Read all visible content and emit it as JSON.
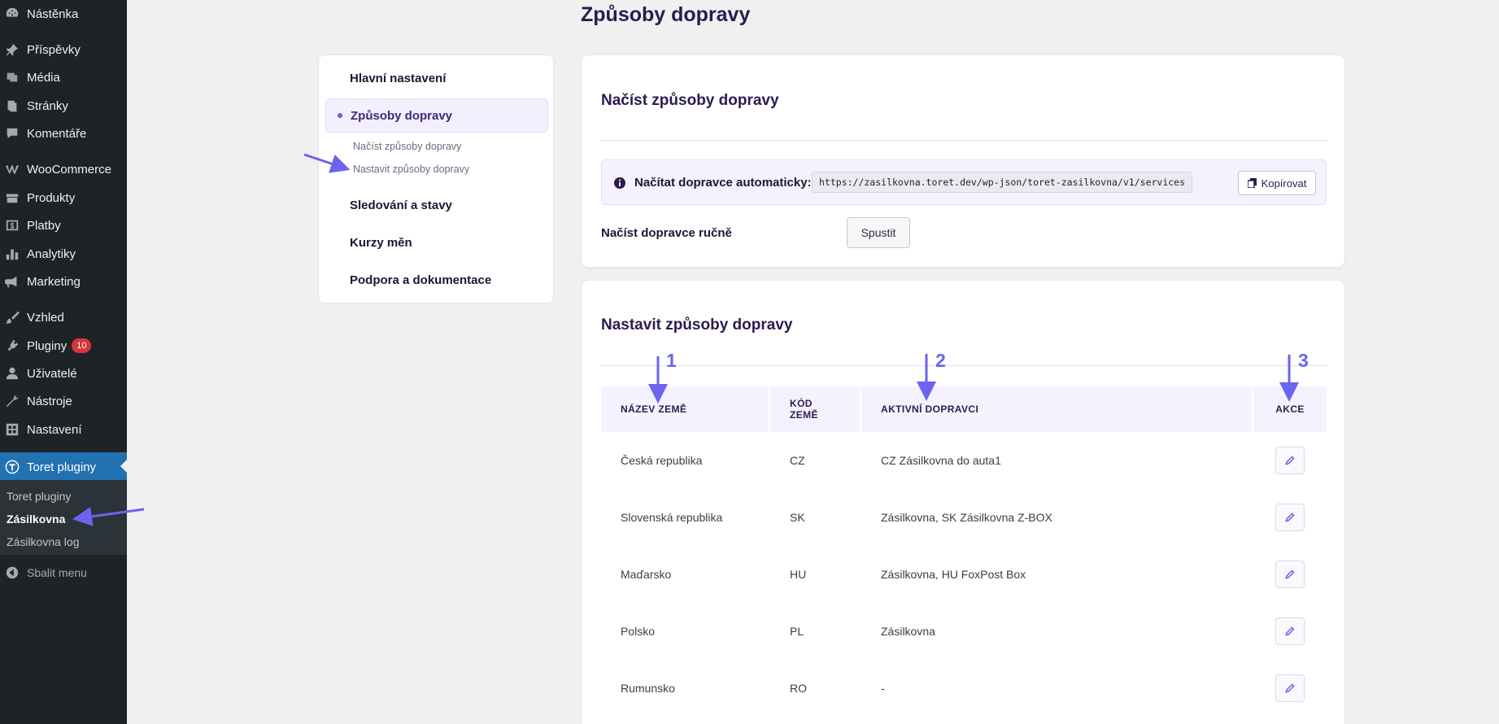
{
  "sidebar": {
    "items": [
      {
        "label": "Nástěnka",
        "icon": "dashboard-icon"
      },
      {
        "label": "Příspěvky",
        "icon": "pin-icon"
      },
      {
        "label": "Média",
        "icon": "media-icon"
      },
      {
        "label": "Stránky",
        "icon": "pages-icon"
      },
      {
        "label": "Komentáře",
        "icon": "comments-icon"
      },
      {
        "label": "WooCommerce",
        "icon": "woocommerce-icon"
      },
      {
        "label": "Produkty",
        "icon": "products-icon"
      },
      {
        "label": "Platby",
        "icon": "payments-icon"
      },
      {
        "label": "Analytiky",
        "icon": "analytics-icon"
      },
      {
        "label": "Marketing",
        "icon": "megaphone-icon"
      },
      {
        "label": "Vzhled",
        "icon": "brush-icon"
      },
      {
        "label": "Pluginy",
        "icon": "plugins-icon",
        "badge": "10"
      },
      {
        "label": "Uživatelé",
        "icon": "users-icon"
      },
      {
        "label": "Nástroje",
        "icon": "tools-icon"
      },
      {
        "label": "Nastavení",
        "icon": "settings-icon"
      },
      {
        "label": "Toret pluginy",
        "icon": "toret-icon"
      }
    ],
    "submenu": [
      "Toret pluginy",
      "Zásilkovna",
      "Zásilkovna log"
    ],
    "collapse_label": "Sbalit menu"
  },
  "page": {
    "title": "Způsoby dopravy"
  },
  "settings_nav": {
    "main": "Hlavní nastavení",
    "active": "Způsoby dopravy",
    "sub": [
      "Načíst způsoby dopravy",
      "Nastavit způsoby dopravy"
    ],
    "others": [
      "Sledování a stavy",
      "Kurzy měn",
      "Podpora a dokumentace"
    ]
  },
  "load_card": {
    "title": "Načíst způsoby dopravy",
    "auto_label": "Načítat dopravce automaticky:",
    "url": "https://zasilkovna.toret.dev/wp-json/toret-zasilkovna/v1/services",
    "copy_label": "Kopírovat",
    "manual_label": "Načíst dopravce ručně",
    "run_label": "Spustit"
  },
  "set_card": {
    "title": "Nastavit způsoby dopravy",
    "headers": {
      "country": "NÁZEV ZEMĚ",
      "code_line1": "KÓD",
      "code_line2": "ZEMĚ",
      "carriers": "AKTIVNÍ DOPRAVCI",
      "action": "AKCE"
    },
    "rows": [
      {
        "country": "Česká republika",
        "code": "CZ",
        "carriers": "CZ Zásilkovna do auta1"
      },
      {
        "country": "Slovenská republika",
        "code": "SK",
        "carriers": "Zásilkovna, SK Zásilkovna Z-BOX"
      },
      {
        "country": "Maďarsko",
        "code": "HU",
        "carriers": "Zásilkovna, HU FoxPost Box"
      },
      {
        "country": "Polsko",
        "code": "PL",
        "carriers": "Zásilkovna"
      },
      {
        "country": "Rumunsko",
        "code": "RO",
        "carriers": "-"
      }
    ]
  },
  "annotations": [
    "1",
    "2",
    "3"
  ],
  "colors": {
    "accent": "#6c63f0",
    "wp_blue": "#2271b1",
    "sidebar": "#1d2327",
    "title": "#2d1b4e"
  }
}
